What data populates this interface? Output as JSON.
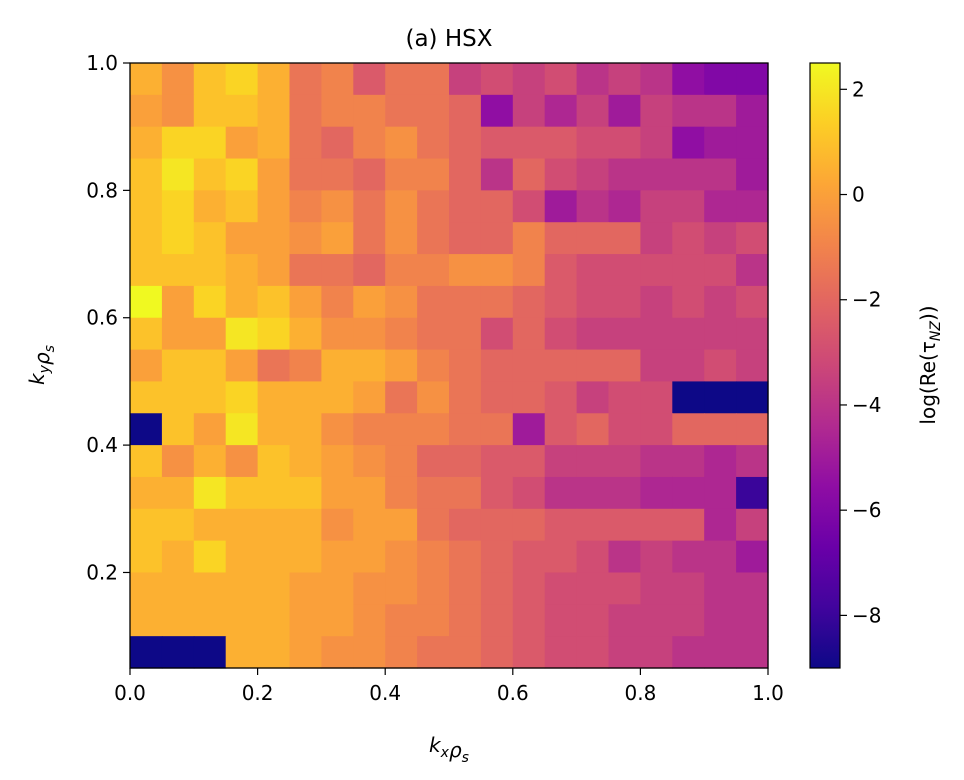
{
  "chart_data": {
    "type": "heatmap",
    "title": "(a) HSX",
    "xlabel": "k_x ρ_s",
    "ylabel": "k_y ρ_s",
    "colorbar_label": "log(Re(τ_NZ))",
    "colormap": "plasma",
    "xlim": [
      0.0,
      1.0
    ],
    "ylim": [
      0.05,
      1.0
    ],
    "clim": [
      -9.0,
      2.5
    ],
    "grid": false,
    "x_ticks": [
      0.0,
      0.2,
      0.4,
      0.6,
      0.8,
      1.0
    ],
    "x_tick_labels": [
      "0.0",
      "0.2",
      "0.4",
      "0.6",
      "0.8",
      "1.0"
    ],
    "y_ticks": [
      0.2,
      0.4,
      0.6,
      0.8,
      1.0
    ],
    "y_tick_labels": [
      "0.2",
      "0.4",
      "0.6",
      "0.8",
      "1.0"
    ],
    "colorbar_ticks": [
      2,
      0,
      -2,
      -4,
      -6,
      -8
    ],
    "colorbar_tick_labels": [
      "2",
      "0",
      "−2",
      "−4",
      "−6",
      "−8"
    ],
    "x_edges": [
      0.0,
      0.05,
      0.1,
      0.15,
      0.2,
      0.25,
      0.3,
      0.35,
      0.4,
      0.45,
      0.5,
      0.55,
      0.6,
      0.65,
      0.7,
      0.75,
      0.8,
      0.85,
      0.9,
      0.95,
      1.0
    ],
    "y_edges": [
      0.05,
      0.1,
      0.15,
      0.2,
      0.25,
      0.3,
      0.35,
      0.4,
      0.45,
      0.5,
      0.55,
      0.6,
      0.65,
      0.7,
      0.75,
      0.8,
      0.85,
      0.9,
      0.95,
      1.0
    ],
    "z_rows_top_to_bottom": [
      [
        0.5,
        -0.5,
        1.0,
        1.5,
        0.5,
        -1.5,
        -1.0,
        -2.5,
        -1.5,
        -1.5,
        -3.5,
        -3.0,
        -3.5,
        -3.0,
        -4.0,
        -3.5,
        -4.0,
        -5.5,
        -6.0,
        -6.0
      ],
      [
        0.0,
        -0.5,
        1.0,
        1.0,
        0.5,
        -1.5,
        -1.0,
        -1.0,
        -1.5,
        -1.5,
        -2.0,
        -5.5,
        -3.5,
        -4.5,
        -3.5,
        -5.0,
        -3.5,
        -4.0,
        -4.0,
        -5.0
      ],
      [
        0.5,
        1.5,
        1.5,
        0.0,
        0.5,
        -1.5,
        -2.0,
        -1.0,
        -0.5,
        -1.5,
        -2.0,
        -2.5,
        -2.5,
        -2.5,
        -3.0,
        -3.0,
        -3.5,
        -5.5,
        -5.0,
        -5.0
      ],
      [
        1.0,
        2.0,
        1.0,
        1.5,
        0.0,
        -1.5,
        -1.5,
        -2.0,
        -1.0,
        -1.0,
        -2.0,
        -4.0,
        -2.0,
        -3.0,
        -3.5,
        -4.0,
        -4.0,
        -4.0,
        -4.0,
        -5.0
      ],
      [
        1.0,
        1.5,
        0.5,
        1.0,
        0.0,
        -1.0,
        -0.5,
        -1.5,
        -0.5,
        -1.5,
        -2.0,
        -2.0,
        -3.0,
        -5.0,
        -4.0,
        -4.5,
        -3.5,
        -3.5,
        -4.5,
        -4.5
      ],
      [
        1.0,
        1.5,
        1.0,
        0.0,
        0.0,
        -0.5,
        0.0,
        -1.5,
        -0.5,
        -1.5,
        -2.0,
        -2.0,
        -1.0,
        -2.0,
        -2.0,
        -2.0,
        -3.5,
        -3.0,
        -3.5,
        -3.0
      ],
      [
        1.0,
        1.0,
        1.0,
        0.5,
        0.0,
        -1.5,
        -1.5,
        -2.0,
        -1.0,
        -1.0,
        -0.5,
        -0.5,
        -1.0,
        -2.5,
        -3.0,
        -3.0,
        -3.0,
        -3.0,
        -3.0,
        -4.0
      ],
      [
        2.5,
        0.0,
        1.5,
        0.5,
        1.0,
        0.0,
        -1.0,
        0.0,
        -0.5,
        -1.5,
        -1.5,
        -1.5,
        -2.0,
        -2.5,
        -3.0,
        -3.0,
        -3.5,
        -3.0,
        -3.5,
        -3.0
      ],
      [
        1.0,
        0.0,
        0.0,
        2.0,
        1.5,
        0.5,
        -0.5,
        -0.5,
        -1.0,
        -1.5,
        -1.5,
        -3.0,
        -2.0,
        -3.0,
        -3.5,
        -3.5,
        -3.5,
        -3.5,
        -3.5,
        -3.5
      ],
      [
        0.0,
        1.0,
        1.0,
        0.0,
        -1.5,
        -1.0,
        0.5,
        0.5,
        0.0,
        -1.0,
        -1.5,
        -2.0,
        -2.0,
        -2.0,
        -2.0,
        -2.0,
        -3.5,
        -3.5,
        -3.0,
        -3.5
      ],
      [
        1.0,
        1.0,
        1.0,
        1.5,
        0.5,
        0.5,
        0.5,
        0.0,
        -1.5,
        -0.5,
        -1.5,
        -2.0,
        -2.0,
        -2.5,
        -3.5,
        -3.0,
        -3.0,
        -9.0,
        -9.0,
        -9.0
      ],
      [
        -9.0,
        1.0,
        0.0,
        2.0,
        0.5,
        0.5,
        -0.5,
        -1.0,
        -1.0,
        -1.0,
        -1.5,
        -1.5,
        -5.0,
        -2.5,
        -2.0,
        -3.0,
        -3.0,
        -2.0,
        -2.0,
        -2.0
      ],
      [
        1.0,
        -0.5,
        0.5,
        -0.5,
        1.0,
        0.5,
        0.0,
        -0.5,
        -1.0,
        -2.0,
        -2.0,
        -2.5,
        -2.5,
        -3.5,
        -3.5,
        -3.5,
        -4.0,
        -4.0,
        -4.5,
        -4.0
      ],
      [
        0.5,
        0.5,
        2.0,
        1.0,
        1.0,
        1.0,
        0.0,
        0.0,
        -1.0,
        -1.5,
        -1.5,
        -2.5,
        -3.0,
        -4.0,
        -4.0,
        -4.0,
        -4.5,
        -4.5,
        -4.5,
        -8.0
      ],
      [
        1.0,
        1.0,
        0.5,
        0.5,
        0.5,
        0.5,
        -0.5,
        0.0,
        0.0,
        -1.5,
        -2.0,
        -2.0,
        -2.0,
        -2.5,
        -2.5,
        -2.5,
        -2.5,
        -2.5,
        -4.5,
        -3.5
      ],
      [
        1.0,
        0.5,
        1.5,
        0.5,
        0.5,
        0.5,
        0.0,
        0.0,
        -0.5,
        -1.0,
        -1.5,
        -2.0,
        -2.5,
        -2.5,
        -3.0,
        -4.0,
        -3.5,
        -4.0,
        -4.0,
        -5.0
      ],
      [
        0.5,
        0.5,
        0.5,
        0.5,
        0.5,
        0.0,
        0.0,
        -0.5,
        -0.5,
        -1.0,
        -1.5,
        -2.0,
        -2.5,
        -3.0,
        -3.0,
        -3.0,
        -3.5,
        -3.5,
        -4.0,
        -4.0
      ],
      [
        0.5,
        0.5,
        0.5,
        0.5,
        0.5,
        0.0,
        0.0,
        -0.5,
        -1.0,
        -1.0,
        -1.5,
        -2.0,
        -2.5,
        -3.0,
        -3.0,
        -3.5,
        -3.5,
        -3.5,
        -4.0,
        -4.0
      ],
      [
        -9.0,
        -9.0,
        -9.0,
        0.5,
        0.5,
        0.0,
        -0.5,
        -0.5,
        -1.0,
        -1.5,
        -1.5,
        -2.0,
        -2.5,
        -3.0,
        -3.0,
        -3.5,
        -3.5,
        -4.0,
        -4.0,
        -4.0
      ]
    ]
  }
}
